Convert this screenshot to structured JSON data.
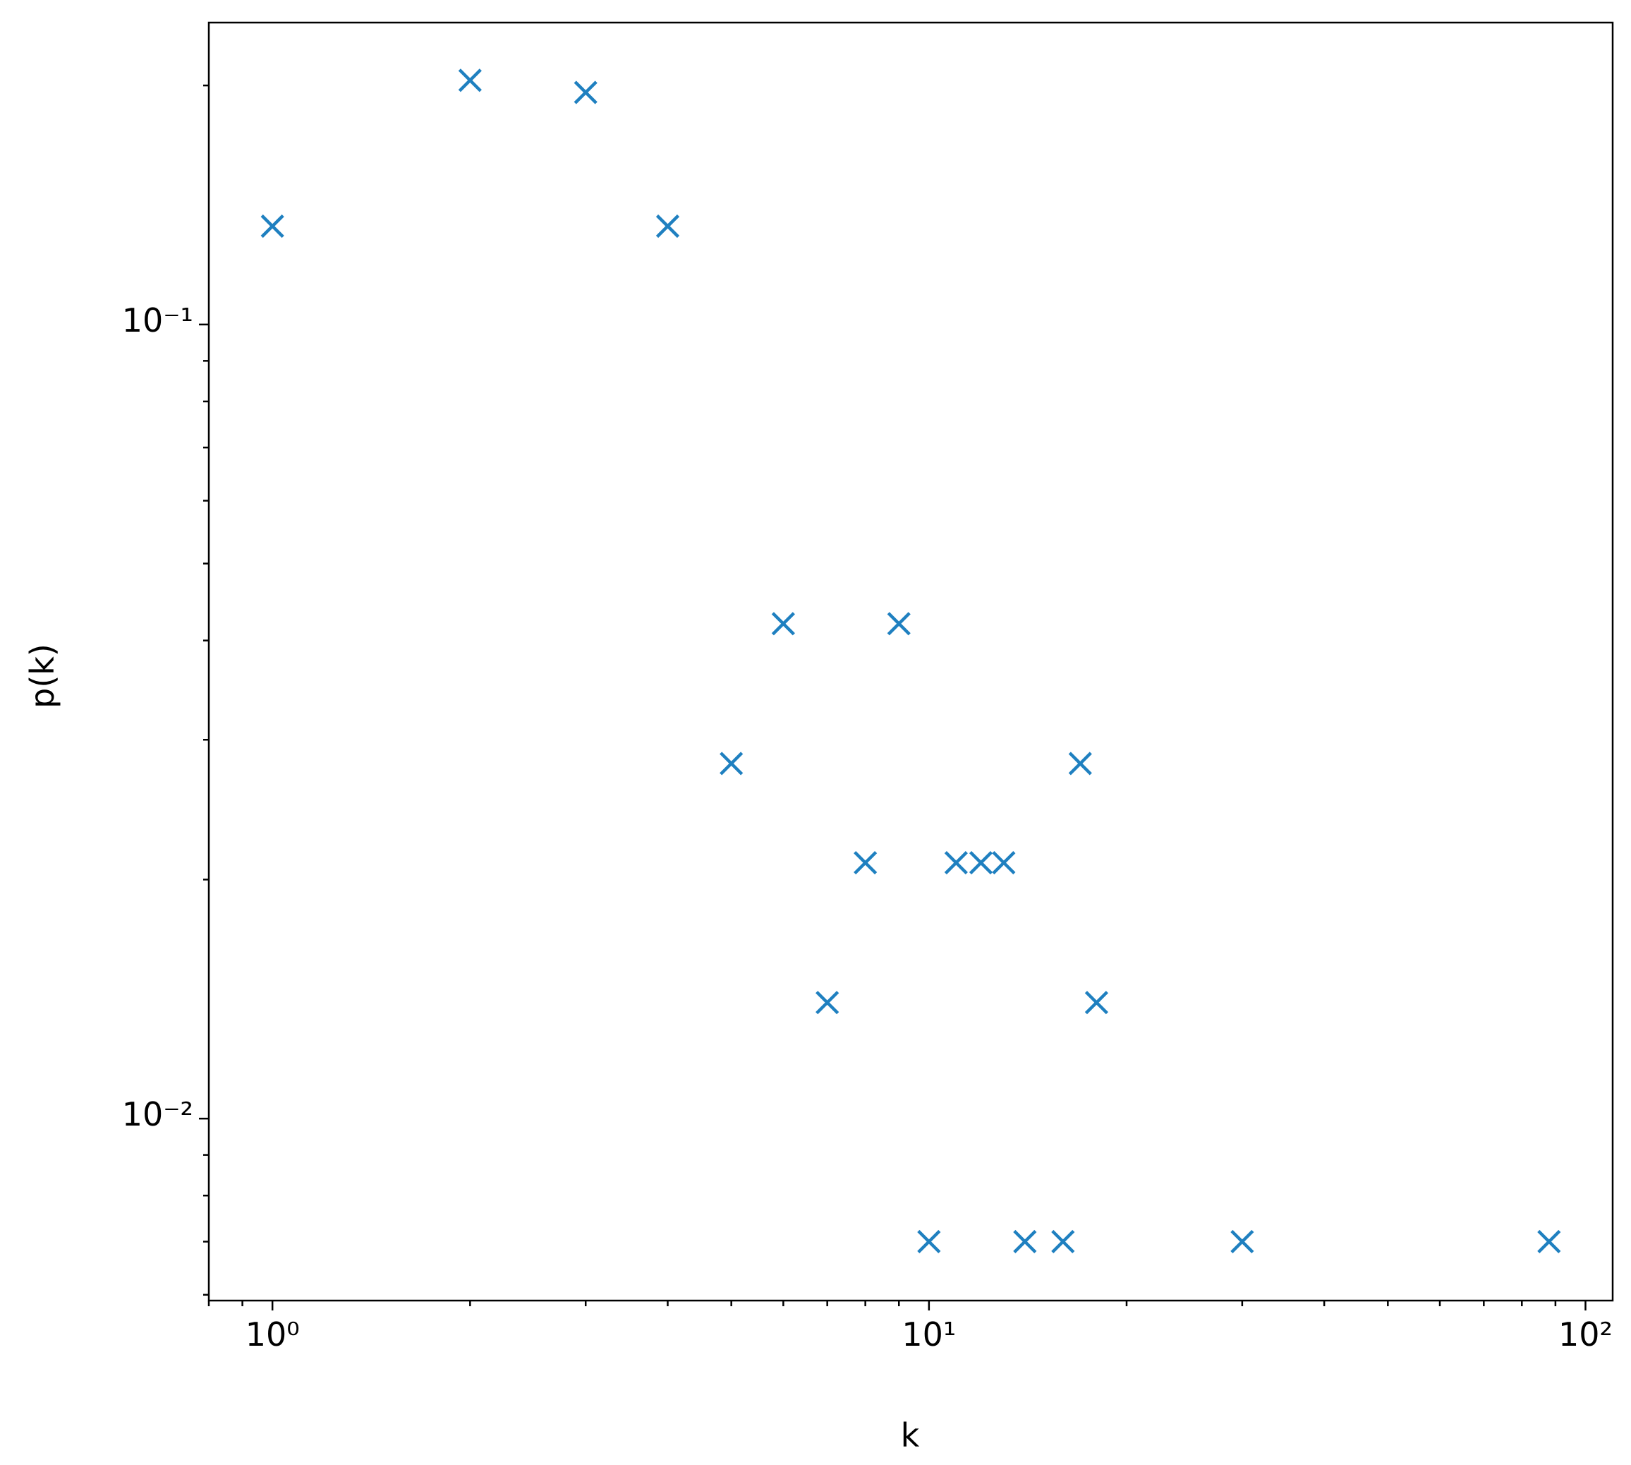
{
  "chart_data": {
    "type": "scatter",
    "xlabel": "k",
    "ylabel": "p(k)",
    "x": [
      1,
      2,
      3,
      4,
      5,
      6,
      7,
      8,
      9,
      10,
      11,
      12,
      13,
      14,
      16,
      17,
      18,
      30,
      88
    ],
    "series": [
      {
        "color": "#1f80c0",
        "marker": "x",
        "values": [
          0.133,
          0.203,
          0.196,
          0.133,
          0.028,
          0.042,
          0.014,
          0.021,
          0.042,
          0.007,
          0.021,
          0.021,
          0.021,
          0.007,
          0.007,
          0.028,
          0.014,
          0.007,
          0.007
        ]
      }
    ],
    "xscale": "log",
    "yscale": "log",
    "xlim": [
      0.8,
      110
    ],
    "ylim": [
      0.0059,
      0.24
    ],
    "xticks": [
      {
        "value": 1,
        "label": "10⁰"
      },
      {
        "value": 10,
        "label": "10¹"
      },
      {
        "value": 100,
        "label": "10²"
      }
    ],
    "yticks": [
      {
        "value": 0.01,
        "label": "10⁻²"
      },
      {
        "value": 0.1,
        "label": "10⁻¹"
      }
    ],
    "xminorticks": [
      0.8,
      0.9,
      2,
      3,
      4,
      5,
      6,
      7,
      8,
      9,
      20,
      30,
      40,
      50,
      60,
      70,
      80,
      90
    ],
    "yminorticks": [
      0.006,
      0.007,
      0.008,
      0.009,
      0.02,
      0.03,
      0.04,
      0.05,
      0.06,
      0.07,
      0.08,
      0.09,
      0.2
    ]
  }
}
